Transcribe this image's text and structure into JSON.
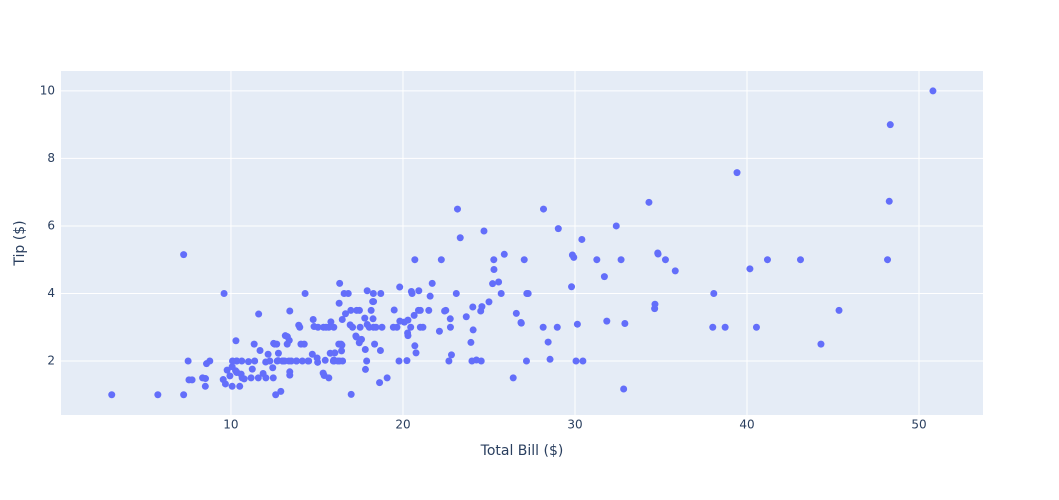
{
  "chart_data": {
    "type": "scatter",
    "x_label": "Total Bill ($)",
    "y_label": "Tip ($)",
    "color": "#636efa",
    "grid": true,
    "xlim": [
      0.12,
      53.72
    ],
    "ylim": [
      0.4,
      10.59
    ],
    "xticks": [
      10,
      20,
      30,
      40,
      50
    ],
    "yticks": [
      2,
      4,
      6,
      8,
      10
    ],
    "x": [
      16.99,
      10.34,
      21.01,
      23.68,
      24.59,
      25.29,
      8.77,
      26.88,
      15.04,
      14.78,
      10.27,
      35.26,
      15.42,
      18.43,
      14.83,
      21.58,
      10.33,
      16.29,
      16.97,
      20.65,
      17.92,
      20.29,
      15.77,
      39.42,
      19.82,
      17.81,
      13.37,
      12.69,
      21.7,
      19.65,
      9.55,
      18.35,
      15.06,
      20.69,
      17.78,
      24.06,
      16.31,
      16.93,
      18.69,
      31.27,
      16.04,
      17.46,
      13.94,
      9.68,
      30.4,
      18.29,
      22.23,
      32.4,
      28.55,
      18.04,
      12.54,
      10.29,
      34.81,
      9.94,
      25.56,
      19.49,
      38.01,
      26.41,
      11.24,
      48.27,
      20.29,
      13.81,
      11.02,
      18.29,
      17.59,
      20.08,
      16.45,
      3.07,
      20.23,
      15.01,
      12.02,
      17.07,
      26.86,
      25.28,
      14.73,
      10.51,
      17.92,
      27.2,
      22.76,
      17.29,
      19.44,
      16.66,
      10.07,
      32.68,
      15.98,
      34.83,
      13.03,
      18.28,
      24.71,
      21.16,
      28.97,
      22.49,
      5.75,
      16.32,
      22.75,
      40.17,
      27.28,
      12.03,
      21.01,
      12.46,
      11.35,
      15.38,
      44.3,
      22.42,
      20.92,
      15.36,
      20.49,
      25.21,
      18.24,
      14.31,
      14,
      7.25,
      38.07,
      23.95,
      25.71,
      17.31,
      29.93,
      10.65,
      12.43,
      24.08,
      11.69,
      13.42,
      14.26,
      15.95,
      12.48,
      29.8,
      8.52,
      14.52,
      11.38,
      22.82,
      19.08,
      20.27,
      11.17,
      12.26,
      18.26,
      8.51,
      10.33,
      14.15,
      16,
      13.16,
      17.47,
      34.3,
      41.19,
      27.05,
      16.43,
      8.35,
      18.64,
      11.87,
      9.78,
      7.51,
      14.07,
      13.13,
      17.26,
      24.55,
      19.77,
      29.85,
      48.17,
      25,
      13.39,
      16.49,
      21.5,
      12.66,
      16.21,
      13.81,
      17.51,
      24.52,
      20.76,
      31.71,
      10.59,
      10.63,
      50.81,
      15.81,
      7.25,
      31.85,
      16.82,
      32.9,
      17.89,
      14.48,
      9.6,
      34.63,
      34.65,
      23.33,
      45.35,
      23.17,
      40.55,
      20.69,
      20.9,
      30.46,
      18.15,
      23.1,
      15.69,
      19.81,
      28.44,
      15.48,
      16.58,
      7.56,
      10.34,
      43.11,
      13,
      13.51,
      18.71,
      12.74,
      13,
      16.4,
      20.53,
      16.47,
      26.59,
      38.73,
      24.27,
      12.76,
      30.06,
      25.89,
      48.33,
      13.27,
      28.17,
      12.9,
      28.15,
      11.59,
      7.74,
      30.14,
      12.16,
      13.42,
      8.58,
      15.98,
      13.42,
      16.27,
      10.09,
      20.45,
      13.28,
      22.12,
      24.01,
      15.69,
      11.61,
      10.77,
      15.53,
      10.07,
      12.6,
      32.83,
      35.83,
      29.03,
      27.18,
      22.67,
      17.82,
      18.78
    ],
    "y": [
      1.01,
      1.66,
      3.5,
      3.31,
      3.61,
      4.71,
      2,
      3.12,
      1.96,
      3.23,
      1.71,
      5,
      1.57,
      3,
      3.02,
      3.92,
      1.67,
      3.71,
      3.5,
      3.35,
      4.08,
      2.75,
      2.23,
      7.58,
      3.18,
      2.34,
      2,
      2,
      4.3,
      3,
      1.45,
      2.5,
      3,
      2.45,
      3.27,
      3.6,
      2,
      3.07,
      2.31,
      5,
      2.24,
      2.54,
      3.06,
      1.32,
      5.6,
      3,
      5,
      6,
      2.05,
      3,
      2.5,
      2.6,
      5.2,
      1.56,
      4.34,
      3.51,
      3,
      1.5,
      1.76,
      6.73,
      3.21,
      2,
      1.98,
      3.76,
      2.64,
      3.15,
      2.47,
      1,
      2.01,
      2.09,
      1.97,
      3,
      3.14,
      5,
      2.2,
      1.25,
      3.08,
      4,
      3,
      2.71,
      3,
      3.4,
      1.83,
      5,
      2.03,
      5.17,
      2,
      4,
      5.85,
      3,
      3,
      3.5,
      1,
      4.3,
      3.25,
      4.73,
      4,
      1.5,
      3,
      1.5,
      2.5,
      3,
      2.5,
      3.48,
      4.08,
      1.64,
      4.06,
      4.29,
      3.76,
      4,
      3,
      1,
      4,
      2.55,
      4,
      3.5,
      5.07,
      1.5,
      1.8,
      2.92,
      2.31,
      1.68,
      2.5,
      2,
      2.52,
      4.2,
      1.48,
      2,
      2,
      2.18,
      1.5,
      2.83,
      1.5,
      2,
      3.25,
      1.25,
      2,
      2,
      2,
      2.75,
      3.5,
      6.7,
      5,
      5,
      2.3,
      1.5,
      1.36,
      1.63,
      1.73,
      2,
      2.5,
      2,
      2.74,
      2,
      2,
      5.14,
      5,
      3.75,
      2.61,
      2,
      3.5,
      2.5,
      2,
      2,
      3,
      3.48,
      2.24,
      4.5,
      1.61,
      2,
      10,
      3.16,
      5.15,
      3.18,
      4,
      3.11,
      2,
      2,
      4,
      3.55,
      3.68,
      5.65,
      3.5,
      6.5,
      3,
      5,
      3.5,
      2,
      3.5,
      4,
      1.5,
      4.19,
      2.56,
      2.02,
      4,
      1.44,
      2,
      5,
      2,
      2,
      4,
      2.01,
      2,
      2.5,
      4,
      3.23,
      3.41,
      3,
      2.03,
      2.23,
      2,
      5.16,
      9,
      2.5,
      6.5,
      1.1,
      3,
      1.5,
      1.44,
      3.09,
      2.2,
      3.48,
      1.92,
      3,
      1.58,
      2.5,
      2,
      3,
      2.72,
      2.88,
      2,
      3,
      3.39,
      1.47,
      3,
      1.25,
      1,
      1.17,
      4.67,
      5.92,
      2,
      2,
      1.75,
      3
    ]
  }
}
